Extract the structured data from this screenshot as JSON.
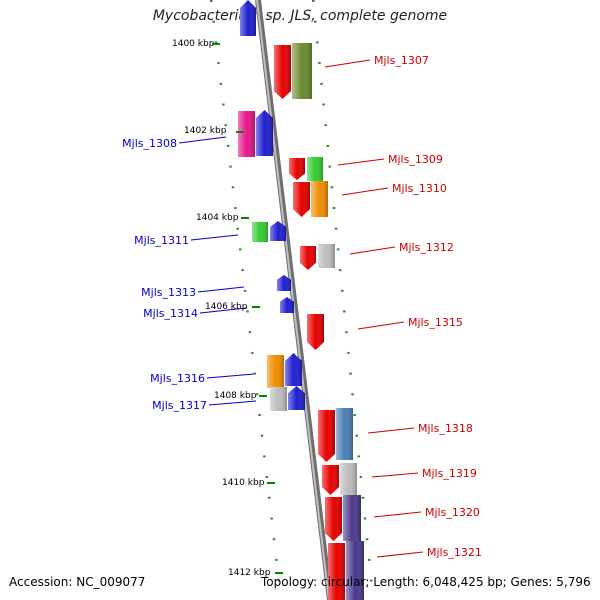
{
  "title": "Mycobacterium sp. JLS, complete genome",
  "footer": {
    "accession": "Accession: NC_009077",
    "topology": "Topology: circular; Length: 6,048,425 bp; Genes: 5,796"
  },
  "colors": {
    "forward_gene_label": "#cc0000",
    "reverse_gene_label": "#0000cc",
    "backbone": "#999999",
    "tick": "#008800"
  },
  "scale_ticks": [
    "1400 kbp",
    "1402 kbp",
    "1404 kbp",
    "1406 kbp",
    "1408 kbp",
    "1410 kbp",
    "1412 kbp"
  ],
  "forward_labels": [
    "Mjls_1307",
    "Mjls_1309",
    "Mjls_1310",
    "Mjls_1312",
    "Mjls_1315",
    "Mjls_1318",
    "Mjls_1319",
    "Mjls_1320",
    "Mjls_1321"
  ],
  "reverse_labels": [
    "Mjls_1308",
    "Mjls_1311",
    "Mjls_1313",
    "Mjls_1314",
    "Mjls_1316",
    "Mjls_1317"
  ]
}
